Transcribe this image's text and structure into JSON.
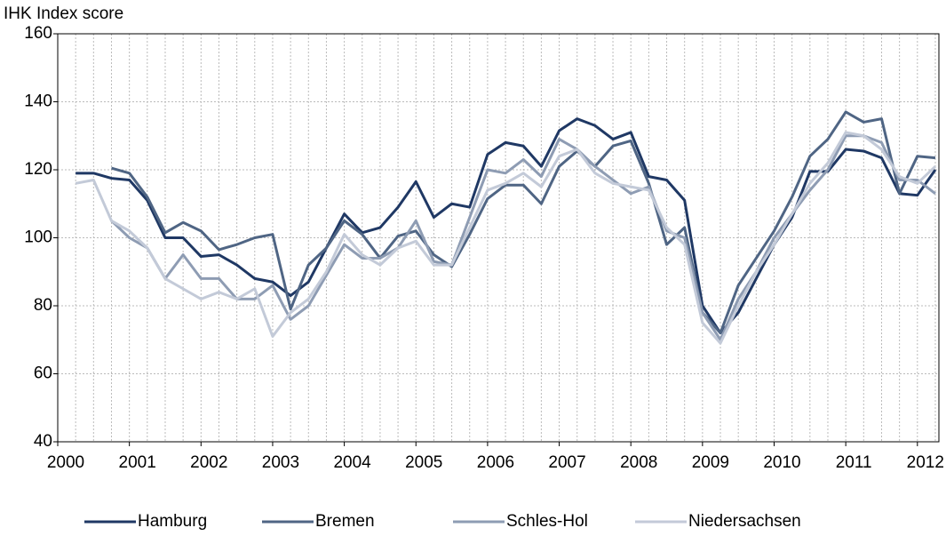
{
  "chart_data": {
    "type": "line",
    "y_label": "IHK Index score",
    "x": [
      2000.25,
      2000.5,
      2000.75,
      2001,
      2001.25,
      2001.5,
      2001.75,
      2002,
      2002.25,
      2002.5,
      2002.75,
      2003,
      2003.25,
      2003.5,
      2003.75,
      2004,
      2004.25,
      2004.5,
      2004.75,
      2005,
      2005.25,
      2005.5,
      2005.75,
      2006,
      2006.25,
      2006.5,
      2006.75,
      2007,
      2007.25,
      2007.5,
      2007.75,
      2008,
      2008.25,
      2008.5,
      2008.75,
      2009,
      2009.25,
      2009.5,
      2009.75,
      2010,
      2010.25,
      2010.5,
      2010.75,
      2011,
      2011.25,
      2011.5,
      2011.75,
      2012,
      2012.25
    ],
    "series": [
      {
        "name": "Hamburg",
        "color": "#1f3864",
        "values": [
          119,
          119,
          117.5,
          117,
          111,
          100,
          100,
          94.5,
          95,
          92,
          88,
          87,
          83,
          87,
          97,
          107,
          101.5,
          103,
          109,
          116.5,
          106,
          110,
          109,
          124.5,
          128,
          127,
          121,
          131.5,
          135,
          133,
          129,
          131,
          118,
          117,
          111,
          80,
          72,
          78,
          88,
          98,
          106,
          119.5,
          119.5,
          126,
          125.5,
          123.5,
          113,
          112.5,
          120
        ]
      },
      {
        "name": "Bremen",
        "color": "#4f6584",
        "values": [
          null,
          null,
          120.5,
          119,
          112,
          101.5,
          104.5,
          102,
          96.5,
          98,
          100,
          101,
          79,
          92,
          97,
          105,
          101,
          94,
          100.5,
          102,
          95,
          91.5,
          101,
          111.5,
          115.5,
          115.5,
          110,
          121,
          125.5,
          121,
          127,
          128.5,
          116,
          98,
          103,
          78,
          72,
          86,
          94,
          102,
          112,
          124,
          129,
          137,
          134,
          135,
          113,
          124,
          123.5
        ]
      },
      {
        "name": "Schles-Hol",
        "color": "#8e9cb3",
        "values": [
          null,
          null,
          105,
          100,
          97,
          88,
          95,
          88,
          88,
          82,
          82,
          86,
          76,
          80,
          89,
          98,
          94,
          94,
          97,
          105,
          93,
          92,
          106,
          120,
          119,
          123,
          118,
          129,
          126,
          121,
          117,
          113,
          115,
          102,
          100,
          78,
          70,
          82,
          90,
          100,
          107,
          114,
          120,
          130,
          130,
          128,
          117,
          117,
          113
        ]
      },
      {
        "name": "Niedersachsen",
        "color": "#c3cad8",
        "values": [
          116,
          117,
          105,
          102,
          97,
          88,
          85,
          82,
          84,
          82,
          85,
          71,
          78,
          82,
          90,
          101,
          95,
          92,
          97,
          99,
          92,
          92,
          103,
          114,
          116,
          119,
          115,
          124,
          126,
          119,
          116,
          115,
          114,
          103,
          98,
          75,
          69,
          80,
          90,
          98,
          107,
          116,
          122,
          131,
          130,
          126,
          118,
          116,
          121
        ]
      }
    ],
    "xlim": [
      2000,
      2012.3
    ],
    "xticks": [
      2000,
      2001,
      2002,
      2003,
      2004,
      2005,
      2006,
      2007,
      2008,
      2009,
      2010,
      2011,
      2012
    ],
    "ylim": [
      40,
      160
    ],
    "yticks": [
      40,
      60,
      80,
      100,
      120,
      140,
      160
    ],
    "grid": true,
    "legend": "bottom"
  }
}
